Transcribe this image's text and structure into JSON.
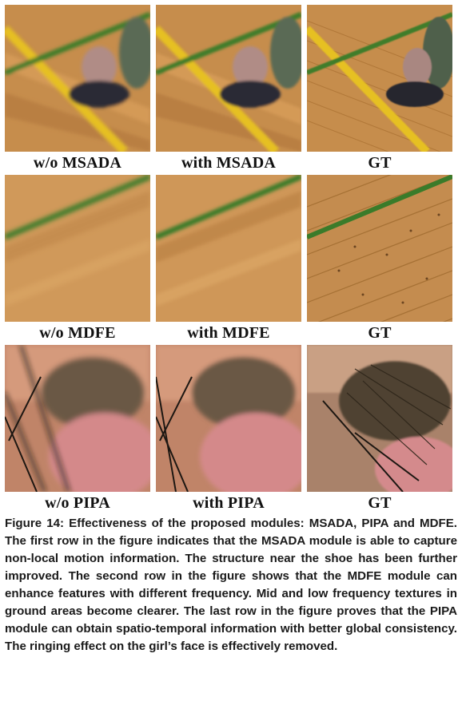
{
  "rows": [
    {
      "scene": "shoe-on-wooden-floor",
      "labels": [
        "w/o MSADA",
        "with MSADA",
        "GT"
      ]
    },
    {
      "scene": "wooden-floor-texture",
      "labels": [
        "w/o MDFE",
        "with MDFE",
        "GT"
      ]
    },
    {
      "scene": "girl-face-closeup",
      "labels": [
        "w/o PIPA",
        "with PIPA",
        "GT"
      ]
    }
  ],
  "caption": "Figure 14: Effectiveness of the proposed modules: MSADA, PIPA and MDFE. The first row in the figure indicates that the MSADA module is able to capture non-local motion information. The structure near the shoe has been further improved. The second row in the figure shows that the MDFE module can enhance features with different frequency. Mid and low frequency textures in ground areas become clearer. The last row in the figure proves that the PIPA module can obtain spatio-temporal information with better global consistency. The ringing effect on the girl’s face is effectively removed.",
  "colors": {
    "wood": "#c8914e",
    "wood_dark": "#a8702f",
    "yellow_line": "#e8c21e",
    "green_line": "#3a7a2a",
    "shoe": "#2a2a33",
    "skin": "#c98a74",
    "hair": "#6b5640"
  }
}
